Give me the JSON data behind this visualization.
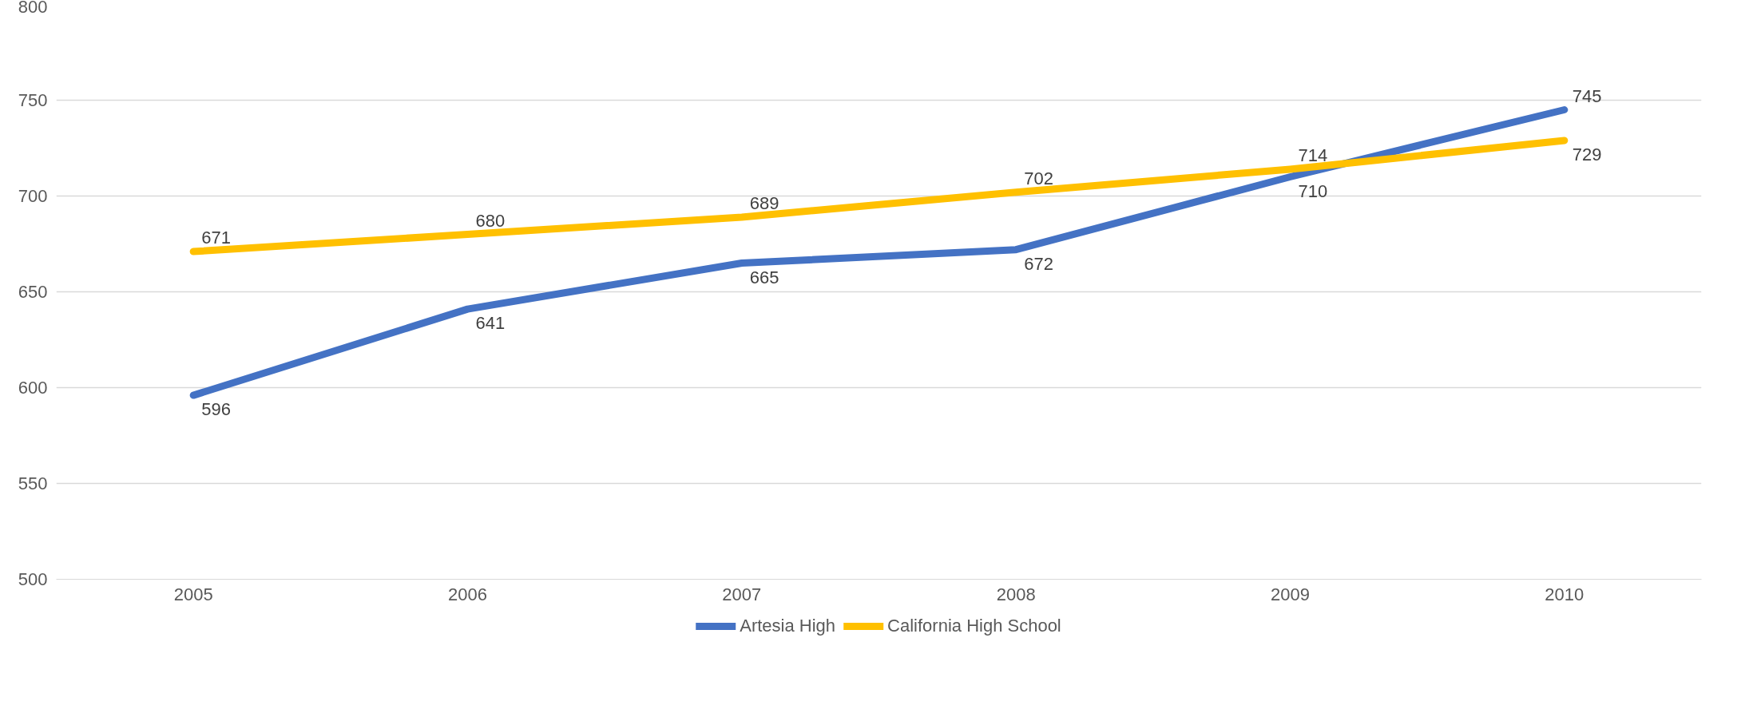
{
  "chart_data": {
    "type": "line",
    "categories": [
      "2005",
      "2006",
      "2007",
      "2008",
      "2009",
      "2010"
    ],
    "series": [
      {
        "name": "Artesia High",
        "color": "#4472c4",
        "values": [
          596,
          641,
          665,
          672,
          710,
          745
        ]
      },
      {
        "name": "California High School",
        "color": "#ffc000",
        "values": [
          671,
          680,
          689,
          702,
          714,
          729
        ]
      }
    ],
    "ylim": [
      500,
      800
    ],
    "yticks": [
      500,
      550,
      600,
      650,
      700,
      750,
      800
    ],
    "grid": "y",
    "legend": "bottom",
    "data_labels": true,
    "marker": "none",
    "line_style": "solid"
  }
}
